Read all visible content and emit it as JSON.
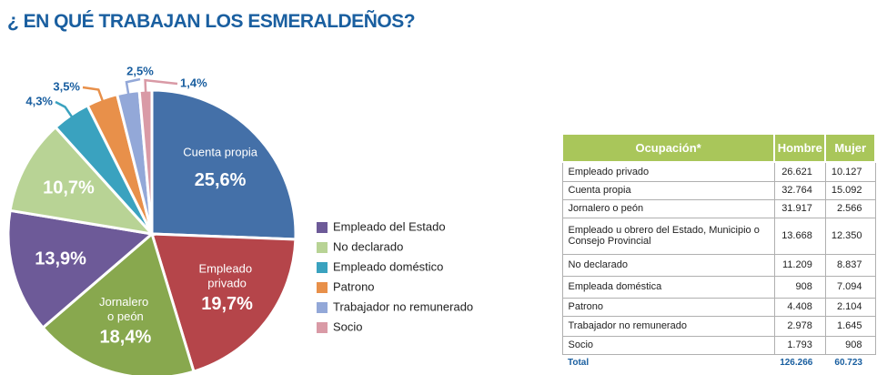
{
  "title": "¿ EN QUÉ TRABAJAN LOS ESMERALDEÑOS?",
  "chart_data": {
    "type": "pie",
    "categories": [
      "Cuenta propia",
      "Empleado privado",
      "Jornalero o peón",
      "Empleado del Estado",
      "No declarado",
      "Empleado doméstico",
      "Patrono",
      "Trabajador no remunerado",
      "Socio"
    ],
    "values": [
      25.6,
      19.7,
      18.4,
      13.9,
      10.7,
      4.3,
      3.5,
      2.5,
      1.4
    ],
    "value_labels": [
      "25,6%",
      "19,7%",
      "18,4%",
      "13,9%",
      "10,7%",
      "4,3%",
      "3,5%",
      "2,5%",
      "1,4%"
    ],
    "colors": [
      "#4470a8",
      "#b5454a",
      "#88a84e",
      "#6d5a98",
      "#b8d395",
      "#3aa2bf",
      "#e8904a",
      "#93a8d8",
      "#d99aa6"
    ]
  },
  "table": {
    "header": [
      "Ocupación*",
      "Hombre",
      "Mujer"
    ],
    "rows": [
      [
        "Empleado privado",
        "26.621",
        "10.127"
      ],
      [
        "Cuenta  propia",
        "32.764",
        "15.092"
      ],
      [
        "Jornalero o peón",
        "31.917",
        "2.566"
      ],
      [
        "Empleado u obrero del Estado, Municipio o Consejo Provincial",
        "13.668",
        "12.350"
      ],
      [
        "No declarado",
        "11.209",
        "8.837"
      ],
      [
        "Empleada doméstica",
        "908",
        "7.094"
      ],
      [
        "Patrono",
        "4.408",
        "2.104"
      ],
      [
        "Trabajador no remunerado",
        "2.978",
        "1.645"
      ],
      [
        "Socio",
        "1.793",
        "908"
      ]
    ],
    "total": [
      "Total",
      "126.266",
      "60.723"
    ]
  }
}
